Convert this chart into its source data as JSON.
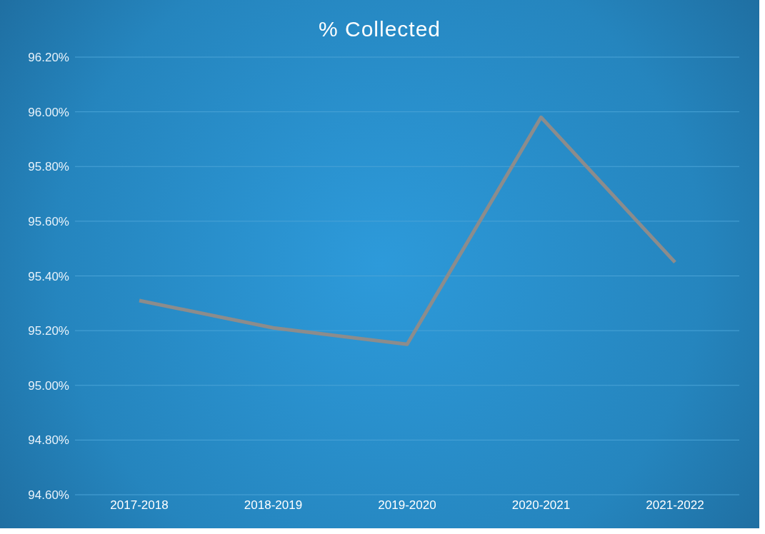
{
  "chart_data": {
    "type": "line",
    "title": "% Collected",
    "categories": [
      "2017-2018",
      "2018-2019",
      "2019-2020",
      "2020-2021",
      "2021-2022"
    ],
    "series": [
      {
        "color": "#8c8c8c",
        "values": [
          95.31,
          95.21,
          95.15,
          95.98,
          95.45
        ]
      }
    ],
    "ylim": [
      94.6,
      96.2
    ],
    "yticks": [
      {
        "value": 94.6,
        "label": "94.60%"
      },
      {
        "value": 94.8,
        "label": "94.80%"
      },
      {
        "value": 95.0,
        "label": "95.00%"
      },
      {
        "value": 95.2,
        "label": "95.20%"
      },
      {
        "value": 95.4,
        "label": "95.40%"
      },
      {
        "value": 95.6,
        "label": "95.60%"
      },
      {
        "value": 95.8,
        "label": "95.80%"
      },
      {
        "value": 96.0,
        "label": "96.00%"
      },
      {
        "value": 96.2,
        "label": "96.20%"
      }
    ],
    "grid": "y",
    "legend": false,
    "marker": "none",
    "line_style": "solid"
  }
}
